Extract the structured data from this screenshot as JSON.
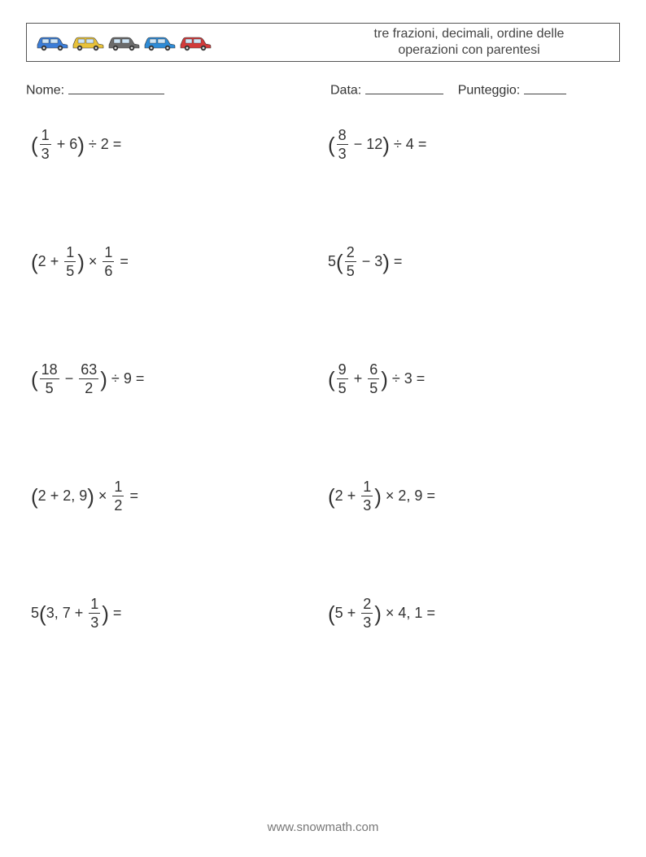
{
  "header": {
    "title_line1": "tre frazioni, decimali, ordine delle",
    "title_line2": "operazioni con parentesi",
    "car_colors": [
      "#3b7dd8",
      "#e8c23a",
      "#6b6b6b",
      "#2e8bd6",
      "#d23b3b"
    ]
  },
  "info": {
    "name_label": "Nome:",
    "name_underline_width": 118,
    "date_label": "Data:",
    "date_underline_width": 96,
    "score_label": "Punteggio:",
    "score_underline_width": 52
  },
  "problems": [
    {
      "tokens": [
        {
          "t": "lparen"
        },
        {
          "t": "frac",
          "n": "1",
          "d": "3"
        },
        {
          "t": "op",
          "v": "+"
        },
        {
          "t": "text",
          "v": "6"
        },
        {
          "t": "rparen"
        },
        {
          "t": "op",
          "v": "÷"
        },
        {
          "t": "text",
          "v": "2"
        },
        {
          "t": "op",
          "v": "="
        }
      ]
    },
    {
      "tokens": [
        {
          "t": "lparen"
        },
        {
          "t": "frac",
          "n": "8",
          "d": "3"
        },
        {
          "t": "op",
          "v": "−"
        },
        {
          "t": "text",
          "v": "12"
        },
        {
          "t": "rparen"
        },
        {
          "t": "op",
          "v": "÷"
        },
        {
          "t": "text",
          "v": "4"
        },
        {
          "t": "op",
          "v": "="
        }
      ]
    },
    {
      "tokens": [
        {
          "t": "lparen"
        },
        {
          "t": "text",
          "v": "2"
        },
        {
          "t": "op",
          "v": "+"
        },
        {
          "t": "frac",
          "n": "1",
          "d": "5"
        },
        {
          "t": "rparen"
        },
        {
          "t": "op",
          "v": "×"
        },
        {
          "t": "frac",
          "n": "1",
          "d": "6"
        },
        {
          "t": "op",
          "v": "="
        }
      ]
    },
    {
      "tokens": [
        {
          "t": "text",
          "v": "5"
        },
        {
          "t": "lparen"
        },
        {
          "t": "frac",
          "n": "2",
          "d": "5"
        },
        {
          "t": "op",
          "v": "−"
        },
        {
          "t": "text",
          "v": "3"
        },
        {
          "t": "rparen"
        },
        {
          "t": "op",
          "v": "="
        }
      ]
    },
    {
      "tokens": [
        {
          "t": "lparen"
        },
        {
          "t": "frac",
          "n": "18",
          "d": "5"
        },
        {
          "t": "op",
          "v": "−"
        },
        {
          "t": "frac",
          "n": "63",
          "d": "2"
        },
        {
          "t": "rparen"
        },
        {
          "t": "op",
          "v": "÷"
        },
        {
          "t": "text",
          "v": "9"
        },
        {
          "t": "op",
          "v": "="
        }
      ]
    },
    {
      "tokens": [
        {
          "t": "lparen"
        },
        {
          "t": "frac",
          "n": "9",
          "d": "5"
        },
        {
          "t": "op",
          "v": "+"
        },
        {
          "t": "frac",
          "n": "6",
          "d": "5"
        },
        {
          "t": "rparen"
        },
        {
          "t": "op",
          "v": "÷"
        },
        {
          "t": "text",
          "v": "3"
        },
        {
          "t": "op",
          "v": "="
        }
      ]
    },
    {
      "tokens": [
        {
          "t": "lparen"
        },
        {
          "t": "text",
          "v": "2"
        },
        {
          "t": "op",
          "v": "+"
        },
        {
          "t": "text",
          "v": "2, 9"
        },
        {
          "t": "rparen"
        },
        {
          "t": "op",
          "v": "×"
        },
        {
          "t": "frac",
          "n": "1",
          "d": "2"
        },
        {
          "t": "op",
          "v": "="
        }
      ]
    },
    {
      "tokens": [
        {
          "t": "lparen"
        },
        {
          "t": "text",
          "v": "2"
        },
        {
          "t": "op",
          "v": "+"
        },
        {
          "t": "frac",
          "n": "1",
          "d": "3"
        },
        {
          "t": "rparen"
        },
        {
          "t": "op",
          "v": "×"
        },
        {
          "t": "text",
          "v": "2, 9"
        },
        {
          "t": "op",
          "v": "="
        }
      ]
    },
    {
      "tokens": [
        {
          "t": "text",
          "v": "5"
        },
        {
          "t": "lparen"
        },
        {
          "t": "text",
          "v": "3, 7"
        },
        {
          "t": "op",
          "v": "+"
        },
        {
          "t": "frac",
          "n": "1",
          "d": "3"
        },
        {
          "t": "rparen"
        },
        {
          "t": "op",
          "v": "="
        }
      ]
    },
    {
      "tokens": [
        {
          "t": "lparen"
        },
        {
          "t": "text",
          "v": "5"
        },
        {
          "t": "op",
          "v": "+"
        },
        {
          "t": "frac",
          "n": "2",
          "d": "3"
        },
        {
          "t": "rparen"
        },
        {
          "t": "op",
          "v": "×"
        },
        {
          "t": "text",
          "v": "4, 1"
        },
        {
          "t": "op",
          "v": "="
        }
      ]
    }
  ],
  "footer": {
    "text": "www.snowmath.com"
  }
}
